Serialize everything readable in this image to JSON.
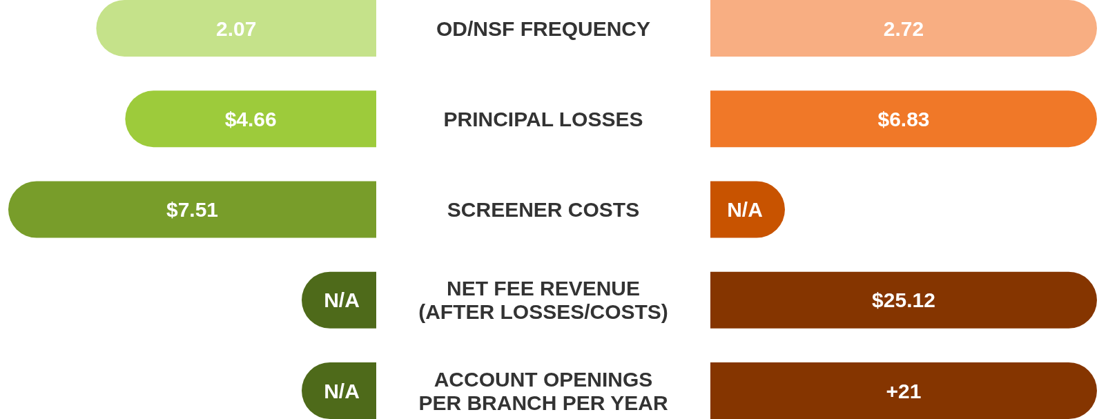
{
  "chart_data": {
    "type": "other",
    "categories": [
      "OD/NSF FREQUENCY",
      "PRINCIPAL LOSSES",
      "SCREENER COSTS",
      "NET FEE REVENUE\n(AFTER LOSSES/COSTS)",
      "ACCOUNT OPENINGS\nPER BRANCH PER YEAR"
    ],
    "series": [
      {
        "colors": [
          "#c5e28a",
          "#9dcb3b",
          "#789d2a",
          "#4e6a1a",
          "#4e6a1a"
        ],
        "values": [
          2.07,
          4.66,
          7.51,
          null,
          null
        ],
        "value_labels": [
          "2.07",
          "$4.66",
          "$7.51",
          "N/A",
          "N/A"
        ]
      },
      {
        "colors": [
          "#f8ae82",
          "#f07828",
          "#c85300",
          "#853500",
          "#853500"
        ],
        "values": [
          2.72,
          6.83,
          null,
          25.12,
          21
        ],
        "value_labels": [
          "2.72",
          "$6.83",
          "N/A",
          "$25.12",
          "+21"
        ]
      }
    ]
  }
}
